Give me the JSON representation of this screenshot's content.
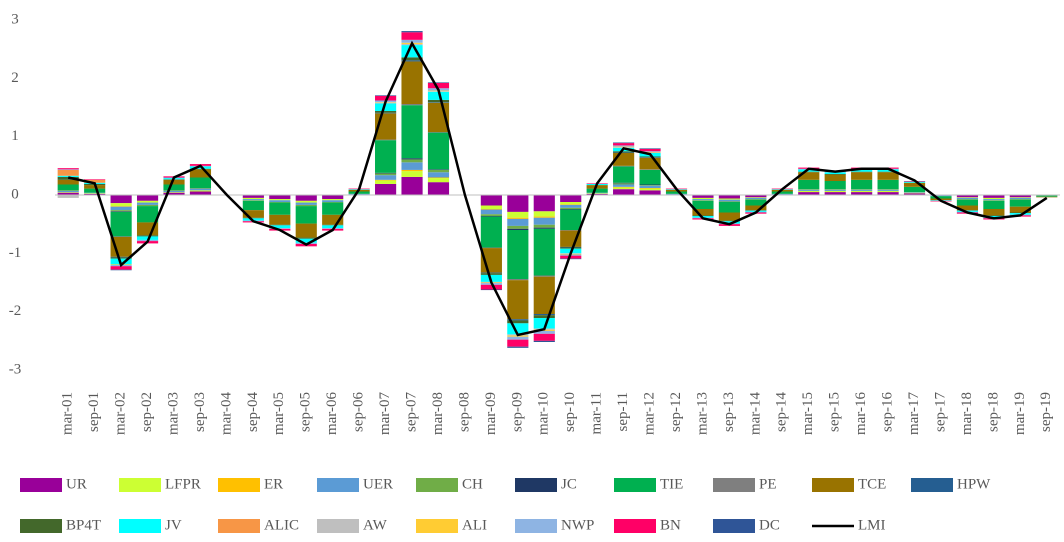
{
  "chart_data": {
    "type": "bar",
    "stacked": true,
    "categories": [
      "mar-01",
      "sep-01",
      "mar-02",
      "sep-02",
      "mar-03",
      "sep-03",
      "mar-04",
      "sep-04",
      "mar-05",
      "sep-05",
      "mar-06",
      "sep-06",
      "mar-07",
      "sep-07",
      "mar-08",
      "sep-08",
      "mar-09",
      "sep-09",
      "mar-10",
      "sep-10",
      "mar-11",
      "sep-11",
      "mar-12",
      "sep-12",
      "mar-13",
      "sep-13",
      "mar-14",
      "sep-14",
      "mar-15",
      "sep-15",
      "mar-16",
      "sep-16",
      "mar-17",
      "sep-17",
      "mar-18",
      "sep-18",
      "mar-19",
      "sep-19"
    ],
    "ylim": [
      -3,
      3
    ],
    "yticks": [
      -3,
      -2,
      -1,
      0,
      1,
      2,
      3
    ],
    "series": [
      {
        "name": "UR",
        "color": "#990099",
        "values": [
          0.04,
          0.02,
          -0.14,
          -0.1,
          0.04,
          0.06,
          0,
          -0.05,
          -0.07,
          -0.1,
          -0.07,
          0.01,
          0.19,
          0.31,
          0.22,
          0,
          -0.18,
          -0.29,
          -0.28,
          -0.12,
          0.02,
          0.1,
          0.08,
          0.01,
          -0.05,
          -0.06,
          -0.04,
          0.01,
          0.05,
          0.05,
          0.05,
          0.05,
          0.03,
          -0.01,
          -0.04,
          -0.05,
          -0.04,
          -0.01
        ]
      },
      {
        "name": "LFPR",
        "color": "#ccff33",
        "values": [
          0.01,
          0.01,
          -0.05,
          -0.03,
          0.01,
          0.02,
          0,
          -0.02,
          -0.02,
          -0.03,
          -0.02,
          0,
          0.06,
          0.1,
          0.07,
          0,
          -0.06,
          -0.1,
          -0.09,
          -0.04,
          0.01,
          0.03,
          0.03,
          0,
          -0.02,
          -0.02,
          -0.01,
          0,
          0.02,
          0.02,
          0.02,
          0.02,
          0.01,
          0,
          -0.01,
          -0.02,
          -0.01,
          0
        ]
      },
      {
        "name": "ER",
        "color": "#ffc000",
        "values": [
          0,
          0,
          -0.01,
          0,
          0,
          0,
          0,
          0,
          0,
          0,
          0,
          0,
          0.01,
          0.02,
          0.01,
          0,
          -0.01,
          -0.02,
          -0.02,
          -0.01,
          0,
          0.01,
          0.01,
          0,
          0,
          0,
          0,
          0,
          0,
          0,
          0,
          0,
          0,
          0,
          0,
          0,
          0,
          0
        ]
      },
      {
        "name": "UER",
        "color": "#5b9bd5",
        "values": [
          0.02,
          0.01,
          -0.06,
          -0.04,
          0.02,
          0.03,
          0,
          -0.02,
          -0.03,
          -0.04,
          -0.03,
          0.01,
          0.08,
          0.13,
          0.09,
          0,
          -0.08,
          -0.12,
          -0.12,
          -0.05,
          0.01,
          0.04,
          0.04,
          0.01,
          -0.02,
          -0.03,
          -0.02,
          0.01,
          0.02,
          0.02,
          0.02,
          0.02,
          0.01,
          -0.01,
          -0.02,
          -0.02,
          -0.02,
          0
        ]
      },
      {
        "name": "CH",
        "color": "#70ad47",
        "values": [
          0.01,
          0,
          -0.02,
          -0.02,
          0.01,
          0.01,
          0,
          -0.01,
          -0.01,
          -0.02,
          -0.01,
          0,
          0.03,
          0.05,
          0.04,
          0,
          -0.03,
          -0.05,
          -0.05,
          -0.02,
          0,
          0.02,
          0.01,
          0,
          -0.01,
          -0.01,
          -0.01,
          0,
          0.01,
          0.01,
          0.01,
          0.01,
          0,
          0,
          -0.01,
          -0.01,
          -0.01,
          0
        ]
      },
      {
        "name": "JC",
        "color": "#1f3864",
        "values": [
          0,
          0,
          -0.01,
          0,
          0,
          0,
          0,
          0,
          0,
          0,
          0,
          0,
          0.01,
          0.02,
          0.01,
          0,
          -0.01,
          -0.02,
          -0.02,
          -0.01,
          0,
          0.01,
          0.01,
          0,
          0,
          0,
          0,
          0,
          0,
          0,
          0,
          0,
          0,
          0,
          0,
          0,
          0,
          0
        ]
      },
      {
        "name": "TIE",
        "color": "#00b050",
        "values": [
          0.1,
          0.07,
          -0.42,
          -0.28,
          0.1,
          0.18,
          0,
          -0.16,
          -0.21,
          -0.3,
          -0.21,
          0.04,
          0.56,
          0.91,
          0.63,
          0,
          -0.53,
          -0.84,
          -0.8,
          -0.35,
          0.07,
          0.28,
          0.25,
          0.04,
          -0.14,
          -0.18,
          -0.1,
          0.04,
          0.16,
          0.14,
          0.16,
          0.16,
          0.09,
          -0.04,
          -0.1,
          -0.14,
          -0.12,
          -0.02
        ]
      },
      {
        "name": "PE",
        "color": "#7f7f7f",
        "values": [
          0,
          0,
          -0.01,
          0,
          0,
          0,
          0,
          0,
          0,
          0,
          0,
          0,
          0.01,
          0.02,
          0.01,
          0,
          -0.01,
          -0.02,
          -0.02,
          -0.01,
          0,
          0.01,
          0.01,
          0,
          0,
          0,
          0,
          0,
          0,
          0,
          0,
          0,
          0,
          0,
          0,
          0,
          0,
          0
        ]
      },
      {
        "name": "TCE",
        "color": "#997300",
        "values": [
          0.08,
          0.06,
          -0.34,
          -0.22,
          0.08,
          0.14,
          0,
          -0.13,
          -0.17,
          -0.24,
          -0.17,
          0.03,
          0.45,
          0.73,
          0.5,
          0,
          -0.42,
          -0.67,
          -0.64,
          -0.28,
          0.06,
          0.22,
          0.2,
          0.03,
          -0.11,
          -0.14,
          -0.08,
          0.03,
          0.13,
          0.11,
          0.13,
          0.13,
          0.07,
          -0.03,
          -0.08,
          -0.11,
          -0.1,
          -0.01
        ]
      },
      {
        "name": "HPW",
        "color": "#255e91",
        "values": [
          0,
          0,
          -0.01,
          0,
          0,
          0,
          0,
          0,
          0,
          0,
          0,
          0,
          0.01,
          0.02,
          0.01,
          0,
          -0.01,
          -0.02,
          -0.02,
          -0.01,
          0,
          0.01,
          0.01,
          0,
          0,
          0,
          0,
          0,
          0,
          0,
          0,
          0,
          0,
          0,
          0,
          0,
          0,
          0
        ]
      },
      {
        "name": "BP4T",
        "color": "#43682b",
        "values": [
          0.05,
          0.02,
          -0.02,
          -0.02,
          0.01,
          0.01,
          0,
          -0.01,
          -0.01,
          -0.02,
          -0.01,
          0,
          0.03,
          0.05,
          0.04,
          0,
          -0.03,
          -0.05,
          -0.05,
          -0.02,
          0,
          0.02,
          0.01,
          0,
          -0.01,
          -0.01,
          -0.01,
          0,
          0.01,
          0.01,
          0.01,
          0.01,
          0,
          0,
          -0.01,
          -0.01,
          -0.01,
          0
        ]
      },
      {
        "name": "JV",
        "color": "#00ffff",
        "values": [
          0.02,
          0.02,
          -0.1,
          -0.06,
          0.02,
          0.04,
          0,
          -0.04,
          -0.05,
          -0.07,
          -0.05,
          0.01,
          0.13,
          0.21,
          0.14,
          0,
          -0.12,
          -0.19,
          -0.18,
          -0.08,
          0.02,
          0.06,
          0.06,
          0.01,
          -0.03,
          -0.04,
          -0.02,
          0.01,
          0.04,
          0.03,
          0.04,
          0.04,
          0.02,
          -0.01,
          -0.02,
          -0.03,
          -0.03,
          0
        ]
      },
      {
        "name": "ALIC",
        "color": "#f79646",
        "values": [
          0.1,
          0.05,
          0,
          0,
          0,
          0,
          0,
          0,
          0,
          0,
          0,
          0,
          0,
          0,
          0,
          0,
          0,
          0,
          0,
          0,
          0,
          0,
          0,
          0,
          0,
          0,
          0,
          0,
          0,
          0,
          0,
          0,
          0,
          0,
          0,
          0,
          0,
          0
        ]
      },
      {
        "name": "AW",
        "color": "#bfbfbf",
        "values": [
          -0.05,
          0,
          0,
          0,
          0,
          0,
          0,
          0,
          0,
          0,
          0,
          0,
          0.01,
          0.02,
          0.01,
          0,
          -0.01,
          -0.02,
          -0.02,
          -0.01,
          0,
          0.01,
          0.01,
          0,
          0,
          0,
          0,
          0,
          0,
          0,
          0,
          0,
          0,
          0,
          0,
          0,
          0,
          0
        ]
      },
      {
        "name": "ALI",
        "color": "#ffcc33",
        "values": [
          0,
          0,
          -0.01,
          0,
          0,
          0,
          0,
          0,
          0,
          0,
          0,
          0,
          0.01,
          0.02,
          0.01,
          0,
          -0.01,
          -0.02,
          -0.02,
          -0.01,
          0,
          0.01,
          0.01,
          0,
          0,
          0,
          0,
          0,
          0,
          0,
          0,
          0,
          0,
          0,
          0,
          0,
          0,
          0
        ]
      },
      {
        "name": "NWP",
        "color": "#8eb4e3",
        "values": [
          0.01,
          0,
          -0.02,
          -0.02,
          0.01,
          0.01,
          0,
          -0.01,
          -0.01,
          -0.02,
          -0.01,
          0,
          0.03,
          0.05,
          0.04,
          0,
          -0.03,
          -0.05,
          -0.05,
          -0.02,
          0,
          0.02,
          0.01,
          0,
          -0.01,
          -0.01,
          -0.01,
          0,
          0.01,
          0.01,
          0.01,
          0.01,
          0,
          0,
          -0.01,
          -0.01,
          -0.01,
          0
        ]
      },
      {
        "name": "BN",
        "color": "#ff0066",
        "values": [
          0.02,
          0.01,
          -0.06,
          -0.04,
          0.02,
          0.03,
          0,
          -0.02,
          -0.03,
          -0.04,
          -0.03,
          0.01,
          0.08,
          0.13,
          0.09,
          0,
          -0.08,
          -0.12,
          -0.12,
          -0.05,
          0.01,
          0.04,
          0.04,
          0.01,
          -0.02,
          -0.03,
          -0.02,
          0.01,
          0.02,
          0.02,
          0.02,
          0.02,
          0.01,
          -0.01,
          -0.02,
          -0.02,
          -0.02,
          0
        ]
      },
      {
        "name": "DC",
        "color": "#2f5597",
        "values": [
          0,
          0,
          -0.01,
          0,
          0,
          0,
          0,
          0,
          0,
          0,
          0,
          0,
          0.01,
          0.02,
          0.01,
          0,
          -0.01,
          -0.02,
          -0.02,
          -0.01,
          0,
          0.01,
          0.01,
          0,
          0,
          0,
          0,
          0,
          0,
          0,
          0,
          0,
          0,
          0,
          0,
          0,
          0,
          0
        ]
      },
      {
        "name": "LMI",
        "color": "#000000",
        "type": "line",
        "values": [
          0.3,
          0.2,
          -1.2,
          -0.8,
          0.3,
          0.5,
          0.0,
          -0.45,
          -0.6,
          -0.85,
          -0.6,
          0.1,
          1.6,
          2.6,
          1.8,
          0.0,
          -1.5,
          -2.4,
          -2.3,
          -1.0,
          0.2,
          0.8,
          0.7,
          0.1,
          -0.4,
          -0.5,
          -0.3,
          0.1,
          0.45,
          0.4,
          0.45,
          0.45,
          0.25,
          -0.1,
          -0.3,
          -0.4,
          -0.35,
          -0.05
        ]
      }
    ]
  }
}
